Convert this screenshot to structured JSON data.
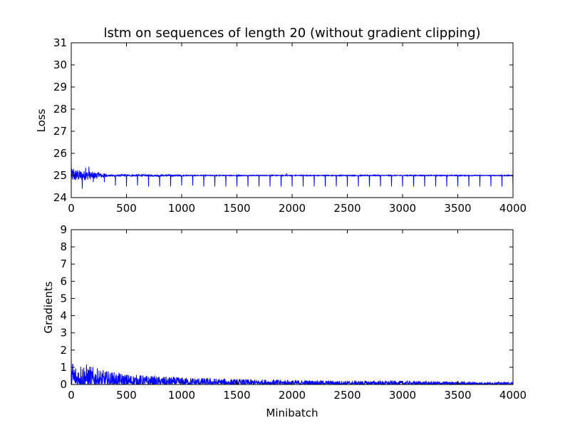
{
  "figure": {
    "title": "lstm on sequences of length 20 (without gradient clipping)"
  },
  "chart_data": [
    {
      "type": "line",
      "title": "lstm on sequences of length 20 (without gradient clipping)",
      "xlabel": "",
      "ylabel": "Loss",
      "xlim": [
        0,
        4000
      ],
      "ylim": [
        24,
        31
      ],
      "xticks": [
        0,
        500,
        1000,
        1500,
        2000,
        2500,
        3000,
        3500,
        4000
      ],
      "yticks": [
        24,
        25,
        26,
        27,
        28,
        29,
        30,
        31
      ],
      "grid": false,
      "color": "#0000ff",
      "series": [
        {
          "baseline": 25.0,
          "early_peaks": [
            [
              0,
              25.5
            ],
            [
              20,
              25.3
            ],
            [
              50,
              25.2
            ],
            [
              100,
              24.4
            ],
            [
              130,
              25.35
            ],
            [
              160,
              25.4
            ],
            [
              200,
              25.2
            ],
            [
              250,
              25.15
            ],
            [
              300,
              25.1
            ],
            [
              800,
              25.15
            ],
            [
              1950,
              25.1
            ]
          ],
          "periodic_dips": {
            "start": 100,
            "step": 100,
            "end": 4000,
            "values": [
              24.4,
              24.7,
              24.7,
              24.55,
              24.5,
              24.55,
              24.5,
              24.5,
              24.5,
              24.55,
              24.55,
              24.5,
              24.5,
              24.5,
              24.5,
              24.5,
              24.5,
              24.5,
              24.5,
              24.5,
              24.5,
              24.5,
              24.5,
              24.5,
              24.5,
              24.5,
              24.5,
              24.5,
              24.5,
              24.5,
              24.5,
              24.5,
              24.5,
              24.5,
              24.5,
              24.5,
              24.5,
              24.5,
              24.5,
              24.5
            ]
          }
        }
      ]
    },
    {
      "type": "line",
      "xlabel": "Minibatch",
      "ylabel": "Gradients",
      "xlim": [
        0,
        4000
      ],
      "ylim": [
        0,
        9
      ],
      "xticks": [
        0,
        500,
        1000,
        1500,
        2000,
        2500,
        3000,
        3500,
        4000
      ],
      "yticks": [
        0,
        1,
        2,
        3,
        4,
        5,
        6,
        7,
        8,
        9
      ],
      "grid": false,
      "color": "#0000ff",
      "series": [
        {
          "envelope": [
            [
              0,
              1.6
            ],
            [
              50,
              1.1
            ],
            [
              100,
              1.3
            ],
            [
              200,
              1.0
            ],
            [
              300,
              0.8
            ],
            [
              500,
              0.6
            ],
            [
              800,
              0.45
            ],
            [
              1000,
              0.4
            ],
            [
              1500,
              0.3
            ],
            [
              2000,
              0.25
            ],
            [
              2500,
              0.2
            ],
            [
              3000,
              0.2
            ],
            [
              3500,
              0.15
            ],
            [
              4000,
              0.12
            ]
          ],
          "floor": 0.02
        }
      ]
    }
  ]
}
